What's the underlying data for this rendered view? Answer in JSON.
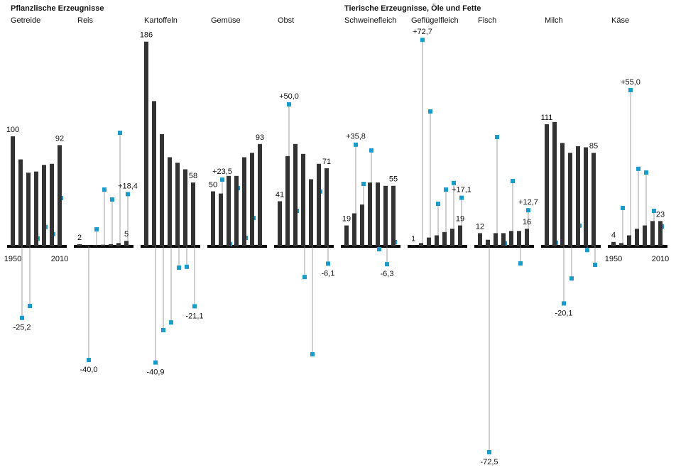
{
  "chart_data": {
    "type": "bar",
    "bar_color": "#333333",
    "change_color": "#1a9bc9",
    "year_labels": [
      "1950",
      "2010"
    ],
    "groups": [
      {
        "title": "Pflanzlische Erzeugnisse",
        "panels": [
          {
            "name": "Getreide",
            "values": [
              100,
              79,
              67,
              68,
              74,
              75,
              92
            ],
            "value_labels": [
              "100",
              null,
              null,
              null,
              null,
              null,
              "92"
            ],
            "changes": [
              -25.2,
              -21,
              2.8,
              6.8,
              4.3,
              17
            ],
            "change_labels": [
              "-25,2",
              null,
              null,
              null,
              null,
              null
            ]
          },
          {
            "name": "Reis",
            "values": [
              2,
              1,
              1,
              1.5,
              2,
              3,
              5
            ],
            "value_labels": [
              "2",
              null,
              null,
              null,
              null,
              null,
              "5"
            ],
            "changes": [
              -40.0,
              6,
              20,
              16.5,
              40,
              18.4
            ],
            "change_labels": [
              "-40,0",
              null,
              null,
              null,
              null,
              "+18,4"
            ]
          },
          {
            "name": "Kartoffeln",
            "values": [
              186,
              132,
              102,
              81,
              76,
              70,
              58
            ],
            "value_labels": [
              "186",
              null,
              null,
              null,
              null,
              null,
              "58"
            ],
            "changes": [
              -40.9,
              -29.5,
              -26.8,
              -7.5,
              -7.2,
              -21.1
            ],
            "change_labels": [
              "-40,9",
              null,
              null,
              null,
              null,
              "-21,1"
            ]
          },
          {
            "name": "Gemüse",
            "values": [
              50,
              48,
              64,
              64,
              81,
              85,
              93
            ],
            "value_labels": [
              "50",
              null,
              null,
              null,
              null,
              null,
              "93"
            ],
            "changes": [
              23.5,
              0.8,
              20.5,
              3,
              10,
              null
            ],
            "change_labels": [
              "+23,5",
              null,
              null,
              null,
              null,
              null
            ]
          },
          {
            "name": "Obst",
            "values": [
              41,
              82,
              93,
              84,
              61,
              75,
              71
            ],
            "value_labels": [
              "41",
              null,
              null,
              null,
              null,
              null,
              "71"
            ],
            "changes": [
              50.0,
              12.5,
              -10.8,
              -38,
              19.3,
              -6.1
            ],
            "change_labels": [
              "+50,0",
              null,
              null,
              null,
              null,
              "-6,1"
            ]
          }
        ]
      },
      {
        "title": "Tierische Erzeugnisse, Öle und Fette",
        "panels": [
          {
            "name": "Schweinefleich",
            "values": [
              19,
              30,
              38,
              58,
              58,
              55,
              55
            ],
            "value_labels": [
              "19",
              null,
              null,
              null,
              null,
              null,
              "55"
            ],
            "changes": [
              35.8,
              22,
              33.8,
              -1,
              -6.3,
              1.5
            ],
            "change_labels": [
              "+35,8",
              null,
              null,
              null,
              "-6,3",
              null
            ]
          },
          {
            "name": "Geflügelfleich",
            "values": [
              1,
              3,
              8,
              10,
              13,
              16,
              19
            ],
            "value_labels": [
              "1",
              null,
              null,
              null,
              null,
              null,
              "19"
            ],
            "changes": [
              72.7,
              47.5,
              15,
              20,
              22.3,
              17.1
            ],
            "change_labels": [
              "+72,7",
              null,
              null,
              null,
              null,
              "+17,1"
            ]
          },
          {
            "name": "Fisch",
            "values": [
              12,
              6,
              12,
              12,
              14,
              14,
              16
            ],
            "value_labels": [
              "12",
              null,
              null,
              null,
              null,
              null,
              "16"
            ],
            "changes": [
              -72.5,
              38.5,
              1,
              23,
              -6,
              12.7
            ],
            "change_labels": [
              "-72,5",
              null,
              null,
              null,
              null,
              "+12,7"
            ]
          },
          {
            "name": "Milch",
            "values": [
              111,
              113,
              94,
              85,
              91,
              90,
              85
            ],
            "value_labels": [
              "111",
              null,
              null,
              null,
              null,
              null,
              "85"
            ],
            "changes": [
              1.3,
              -20.1,
              -11.3,
              7.3,
              -1.3,
              -6.5
            ],
            "change_labels": [
              null,
              "-20,1",
              null,
              null,
              null,
              null
            ]
          },
          {
            "name": "Käse",
            "values": [
              4,
              3,
              10,
              16,
              19,
              23,
              23
            ],
            "value_labels": [
              "4",
              null,
              null,
              null,
              null,
              null,
              "23"
            ],
            "changes": [
              13.5,
              55.0,
              27.3,
              26,
              12.5,
              7
            ],
            "change_labels": [
              null,
              "+55,0",
              null,
              null,
              null,
              null
            ]
          }
        ]
      }
    ]
  }
}
